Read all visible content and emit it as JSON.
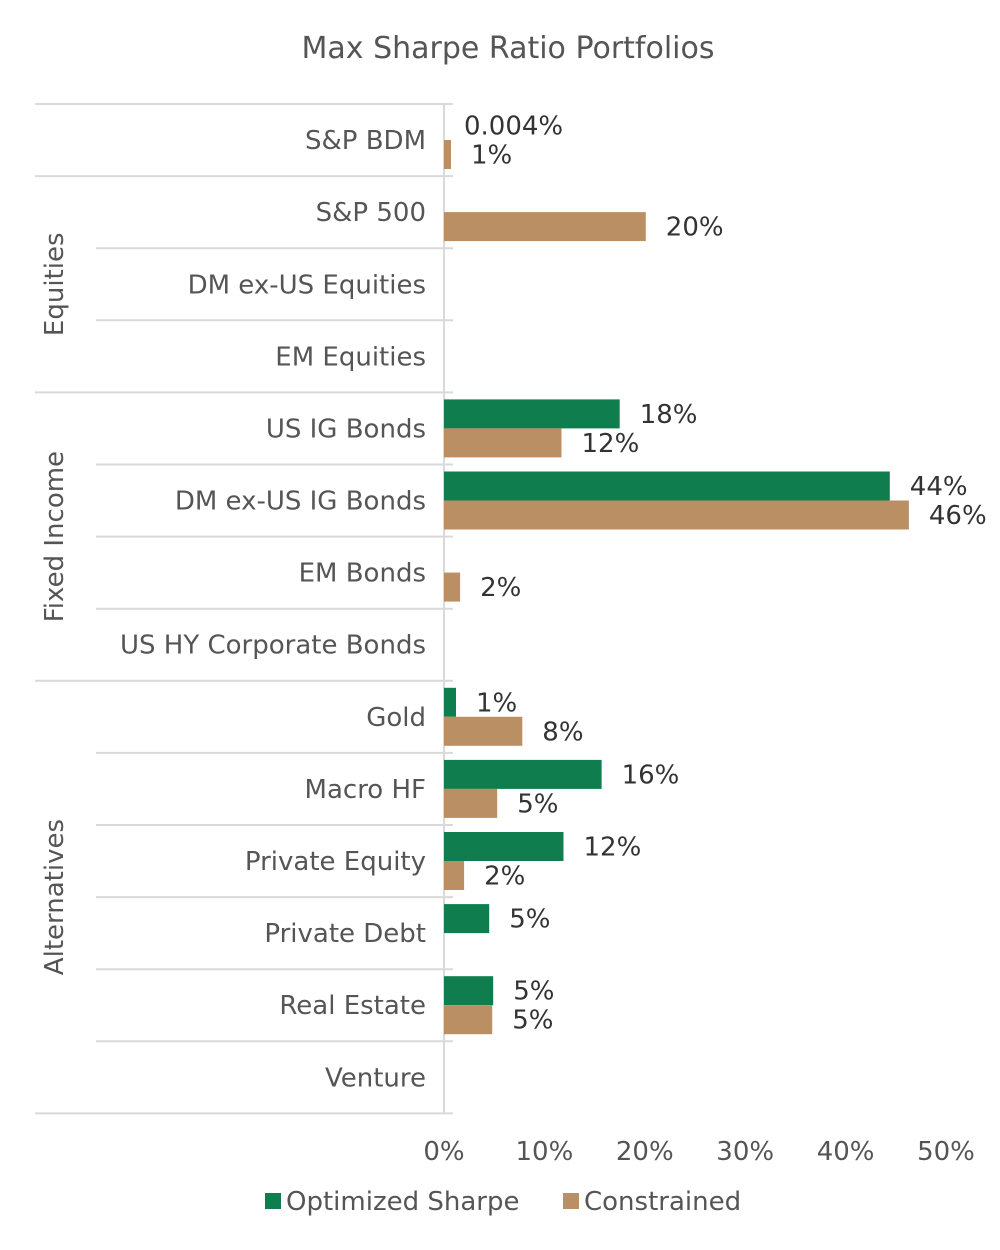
{
  "chart_data": {
    "type": "bar",
    "orientation": "horizontal",
    "title": "Max Sharpe Ratio Portfolios",
    "xlim": [
      0,
      50
    ],
    "x_ticks": [
      "0%",
      "10%",
      "20%",
      "30%",
      "40%",
      "50%"
    ],
    "legend_position": "bottom",
    "groups": [
      {
        "name": "",
        "categories": [
          "S&P BDM"
        ]
      },
      {
        "name": "Equities",
        "categories": [
          "S&P 500",
          "DM ex-US Equities",
          "EM Equities"
        ]
      },
      {
        "name": "Fixed Income",
        "categories": [
          "US IG Bonds",
          "DM ex-US IG Bonds",
          "EM Bonds",
          "US HY Corporate Bonds"
        ]
      },
      {
        "name": "Alternatives",
        "categories": [
          "Gold",
          "Macro HF",
          "Private Equity",
          "Private Debt",
          "Real Estate",
          "Venture"
        ]
      }
    ],
    "categories": [
      "S&P BDM",
      "S&P 500",
      "DM ex-US Equities",
      "EM Equities",
      "US IG Bonds",
      "DM ex-US IG Bonds",
      "EM Bonds",
      "US HY Corporate Bonds",
      "Gold",
      "Macro HF",
      "Private Equity",
      "Private Debt",
      "Real Estate",
      "Venture"
    ],
    "series": [
      {
        "name": "Optimized Sharpe",
        "color": "#0f7d4e",
        "values": [
          0.004,
          null,
          null,
          null,
          17.5,
          44.4,
          null,
          null,
          1.2,
          15.7,
          11.9,
          4.5,
          4.9,
          null
        ],
        "labels": [
          "0.004%",
          "",
          "",
          "",
          "18%",
          "44%",
          "",
          "",
          "1%",
          "16%",
          "12%",
          "5%",
          "5%",
          ""
        ]
      },
      {
        "name": "Constrained",
        "color": "#b98f63",
        "values": [
          0.7,
          20.1,
          null,
          null,
          11.7,
          46.3,
          1.6,
          null,
          7.8,
          5.3,
          2.0,
          null,
          4.8,
          null
        ],
        "labels": [
          "1%",
          "20%",
          "",
          "",
          "12%",
          "46%",
          "2%",
          "",
          "8%",
          "5%",
          "2%",
          "",
          "5%",
          ""
        ]
      }
    ]
  }
}
